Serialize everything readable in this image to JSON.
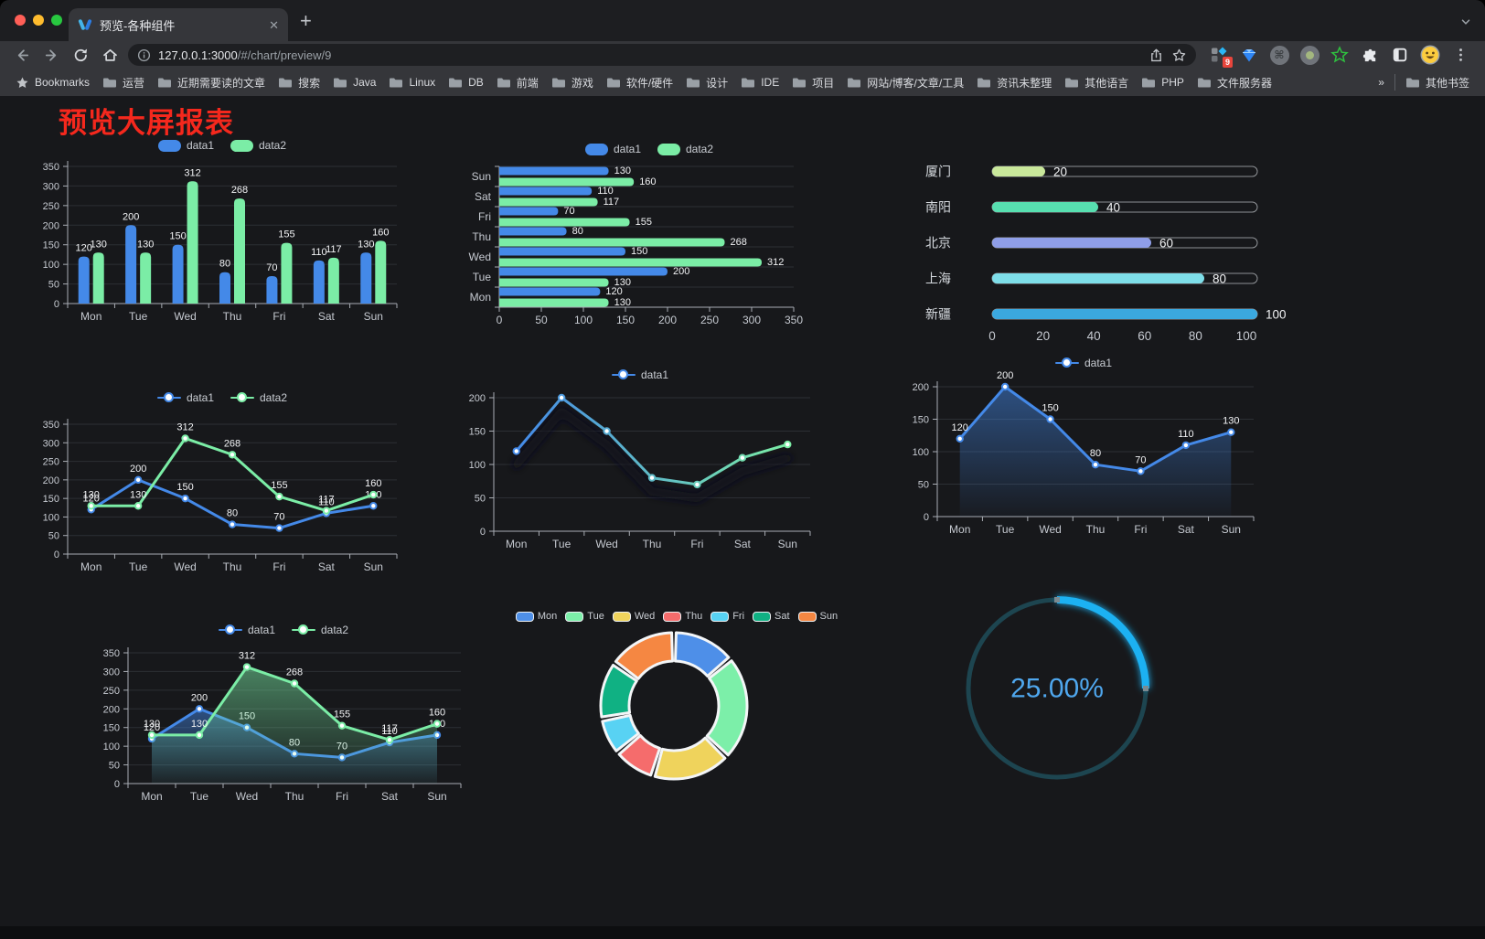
{
  "browser": {
    "tab_title": "预览-各种组件",
    "url_host": "127.0.0.1:3000",
    "url_path": "/#/chart/preview/9",
    "bookmarks_label": "Bookmarks",
    "bookmarks": [
      "运营",
      "近期需要读的文章",
      "搜索",
      "Java",
      "Linux",
      "DB",
      "前端",
      "游戏",
      "软件/硬件",
      "设计",
      "IDE",
      "项目",
      "网站/博客/文章/工具",
      "资讯未整理",
      "其他语言",
      "PHP",
      "文件服务器"
    ],
    "bookmarks_overflow": "»",
    "other_bookmarks": "其他书签",
    "extension_badge": "9",
    "new_tab_glyph": "+",
    "close_glyph": "✕"
  },
  "page": {
    "title": "预览大屏报表",
    "title_color": "#f5281d",
    "background": "#17181b"
  },
  "colors": {
    "data1": "#4489E8",
    "data2": "#7BEDA6",
    "grid": "#2c2f34",
    "axis": "#a9adb4",
    "tick_text": "#c6cad1",
    "value_label": "#f2f3f5"
  },
  "chart_data": [
    {
      "id": "c1",
      "type": "bar",
      "categories": [
        "Mon",
        "Tue",
        "Wed",
        "Thu",
        "Fri",
        "Sat",
        "Sun"
      ],
      "series": [
        {
          "name": "data1",
          "color": "#4489E8",
          "values": [
            120,
            200,
            150,
            80,
            70,
            110,
            130
          ]
        },
        {
          "name": "data2",
          "color": "#7BEDA6",
          "values": [
            130,
            130,
            312,
            268,
            155,
            117,
            160
          ]
        }
      ],
      "ylim": [
        0,
        350
      ],
      "ystep": 50,
      "legend_position": "top",
      "show_labels": true
    },
    {
      "id": "c2",
      "type": "hbar",
      "categories": [
        "Mon",
        "Tue",
        "Wed",
        "Thu",
        "Fri",
        "Sat",
        "Sun"
      ],
      "series": [
        {
          "name": "data1",
          "color": "#4489E8",
          "values": [
            120,
            200,
            150,
            80,
            70,
            110,
            130
          ]
        },
        {
          "name": "data2",
          "color": "#7BEDA6",
          "values": [
            130,
            130,
            312,
            268,
            155,
            117,
            160
          ]
        }
      ],
      "xlim": [
        0,
        350
      ],
      "xstep": 50,
      "legend_position": "top",
      "show_labels": true
    },
    {
      "id": "c3",
      "type": "progress",
      "categories": [
        "厦门",
        "南阳",
        "北京",
        "上海",
        "新疆"
      ],
      "values": [
        20,
        40,
        60,
        80,
        100
      ],
      "colors": [
        "#C9E89B",
        "#57DFB0",
        "#8F9EE8",
        "#7EDEE9",
        "#3BA8DF"
      ],
      "xlim": [
        0,
        100
      ],
      "xstep": 20,
      "show_labels": true
    },
    {
      "id": "c4",
      "type": "line",
      "categories": [
        "Mon",
        "Tue",
        "Wed",
        "Thu",
        "Fri",
        "Sat",
        "Sun"
      ],
      "series": [
        {
          "name": "data1",
          "color": "#4489E8",
          "values": [
            120,
            200,
            150,
            80,
            70,
            110,
            130
          ]
        },
        {
          "name": "data2",
          "color": "#7BEDA6",
          "values": [
            130,
            130,
            312,
            268,
            155,
            117,
            160
          ]
        }
      ],
      "ylim": [
        0,
        350
      ],
      "ystep": 50,
      "legend_position": "top",
      "show_labels": true
    },
    {
      "id": "c5",
      "type": "line",
      "categories": [
        "Mon",
        "Tue",
        "Wed",
        "Thu",
        "Fri",
        "Sat",
        "Sun"
      ],
      "series": [
        {
          "name": "data1",
          "gradient": [
            "#4489E8",
            "#7BEDA6"
          ],
          "values": [
            120,
            200,
            150,
            80,
            70,
            110,
            130
          ],
          "shadow": true
        }
      ],
      "ylim": [
        0,
        200
      ],
      "ystep": 50,
      "legend_position": "top",
      "show_labels": false
    },
    {
      "id": "c6",
      "type": "line",
      "categories": [
        "Mon",
        "Tue",
        "Wed",
        "Thu",
        "Fri",
        "Sat",
        "Sun"
      ],
      "series": [
        {
          "name": "data1",
          "color": "#4489E8",
          "area": true,
          "values": [
            120,
            200,
            150,
            80,
            70,
            110,
            130
          ]
        }
      ],
      "ylim": [
        0,
        200
      ],
      "ystep": 50,
      "legend_position": "top",
      "show_labels": true
    },
    {
      "id": "c7",
      "type": "line",
      "categories": [
        "Mon",
        "Tue",
        "Wed",
        "Thu",
        "Fri",
        "Sat",
        "Sun"
      ],
      "series": [
        {
          "name": "data1",
          "color": "#4489E8",
          "area": true,
          "values": [
            120,
            200,
            150,
            80,
            70,
            110,
            130
          ]
        },
        {
          "name": "data2",
          "color": "#7BEDA6",
          "area": true,
          "values": [
            130,
            130,
            312,
            268,
            155,
            117,
            160
          ]
        }
      ],
      "ylim": [
        0,
        350
      ],
      "ystep": 50,
      "legend_position": "top",
      "show_labels": true
    },
    {
      "id": "c8",
      "type": "donut",
      "items": [
        {
          "label": "Mon",
          "value": 120,
          "color": "#4E8FE8"
        },
        {
          "label": "Tue",
          "value": 200,
          "color": "#7CEFA9"
        },
        {
          "label": "Wed",
          "value": 150,
          "color": "#EFD35C"
        },
        {
          "label": "Thu",
          "value": 80,
          "color": "#F56C6C"
        },
        {
          "label": "Fri",
          "value": 70,
          "color": "#58D2F3"
        },
        {
          "label": "Sat",
          "value": 110,
          "color": "#10B183"
        },
        {
          "label": "Sun",
          "value": 130,
          "color": "#F58742"
        }
      ],
      "legend_position": "top"
    },
    {
      "id": "c9",
      "type": "gauge",
      "value": 25,
      "max": 100,
      "label": "25.00%",
      "track_color": "#1D4550",
      "progress_color": "#1FB1F2",
      "text_color": "#4FA7EE"
    }
  ]
}
